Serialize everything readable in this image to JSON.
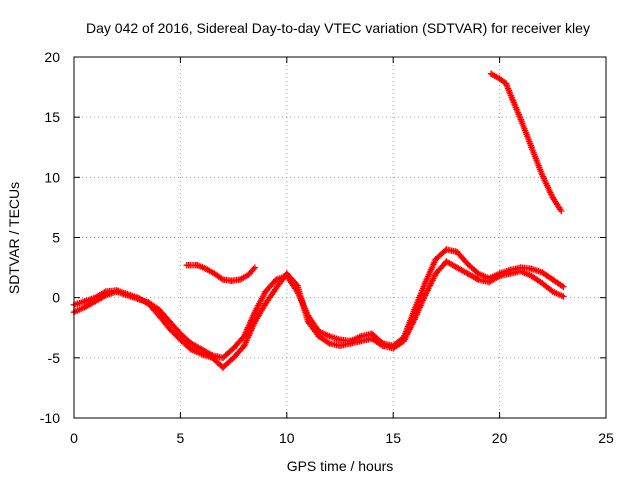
{
  "chart_data": {
    "type": "scatter",
    "title": "Day 042 of 2016, Sidereal Day-to-day VTEC variation (SDTVAR) for receiver kley",
    "xlabel": "GPS time / hours",
    "ylabel": "SDTVAR / TECUs",
    "xlim": [
      0,
      25
    ],
    "ylim": [
      -10,
      20
    ],
    "xticks": [
      0,
      5,
      10,
      15,
      20,
      25
    ],
    "yticks": [
      -10,
      -5,
      0,
      5,
      10,
      15,
      20
    ],
    "xtick_labels": [
      "0",
      "5",
      "10",
      "15",
      "20",
      "25"
    ],
    "ytick_labels": [
      "-10",
      "-5",
      "0",
      "5",
      "10",
      "15",
      "20"
    ],
    "grid": true,
    "legend": "none",
    "marker": "plus",
    "color": "#ff0000",
    "series": [
      {
        "name": "main-track-a",
        "x": [
          0.0,
          0.5,
          1.0,
          1.5,
          2.0,
          2.5,
          3.0,
          3.5,
          4.0,
          4.5,
          5.0,
          5.5,
          6.0,
          6.5,
          7.0,
          7.5,
          8.0,
          8.5,
          9.0,
          9.5,
          10.0,
          10.5,
          11.0,
          11.5,
          12.0,
          12.5,
          13.0,
          13.5,
          14.0,
          14.5,
          15.0,
          15.5,
          16.0,
          16.5,
          17.0,
          17.5,
          18.0,
          18.5,
          19.0,
          19.5,
          20.0,
          20.5,
          21.0,
          21.5,
          22.0,
          22.5,
          23.0
        ],
        "y": [
          -1.2,
          -0.8,
          -0.3,
          0.2,
          0.5,
          0.2,
          -0.1,
          -0.4,
          -1.0,
          -2.0,
          -3.0,
          -3.8,
          -4.3,
          -4.8,
          -5.0,
          -4.2,
          -3.2,
          -1.2,
          0.5,
          1.5,
          1.8,
          0.5,
          -1.5,
          -2.8,
          -3.2,
          -3.5,
          -3.6,
          -3.2,
          -3.0,
          -3.8,
          -4.0,
          -3.3,
          -1.0,
          1.2,
          3.2,
          4.0,
          3.8,
          2.8,
          2.0,
          1.6,
          2.0,
          2.3,
          2.5,
          2.4,
          2.1,
          1.5,
          0.9
        ]
      },
      {
        "name": "main-track-b",
        "x": [
          0.0,
          0.5,
          1.0,
          1.5,
          2.0,
          2.5,
          3.0,
          3.5,
          4.0,
          4.5,
          5.0,
          5.5,
          6.0,
          6.5,
          7.0,
          7.5,
          8.0,
          8.5,
          9.0,
          9.5,
          10.0,
          10.5,
          11.0,
          11.5,
          12.0,
          12.5,
          13.0,
          13.5,
          14.0,
          14.5,
          15.0,
          15.5,
          16.0,
          16.5,
          17.0,
          17.5,
          18.0,
          18.5,
          19.0,
          19.5,
          20.0,
          20.5,
          21.0,
          21.5,
          22.0,
          22.5,
          23.0
        ],
        "y": [
          -0.6,
          -0.3,
          0.0,
          0.5,
          0.6,
          0.3,
          0.0,
          -0.5,
          -1.5,
          -2.6,
          -3.5,
          -4.3,
          -4.7,
          -5.0,
          -5.8,
          -5.0,
          -4.0,
          -2.0,
          -0.5,
          0.8,
          2.0,
          1.0,
          -2.0,
          -3.2,
          -3.8,
          -4.0,
          -3.8,
          -3.6,
          -3.4,
          -4.0,
          -4.2,
          -3.6,
          -1.8,
          0.2,
          2.0,
          3.0,
          2.5,
          2.0,
          1.5,
          1.3,
          1.8,
          2.0,
          2.2,
          1.8,
          1.2,
          0.5,
          0.1
        ]
      },
      {
        "name": "short-track",
        "x": [
          5.3,
          5.8,
          6.2,
          6.6,
          7.0,
          7.4,
          7.8,
          8.2,
          8.5
        ],
        "y": [
          2.7,
          2.7,
          2.4,
          2.0,
          1.5,
          1.4,
          1.5,
          1.9,
          2.5
        ]
      },
      {
        "name": "steep-track",
        "x": [
          19.6,
          20.0,
          20.3,
          20.6,
          21.0,
          21.5,
          22.0,
          22.5,
          22.9
        ],
        "y": [
          18.6,
          18.2,
          17.8,
          16.5,
          14.8,
          12.5,
          10.2,
          8.3,
          7.2
        ]
      }
    ]
  }
}
